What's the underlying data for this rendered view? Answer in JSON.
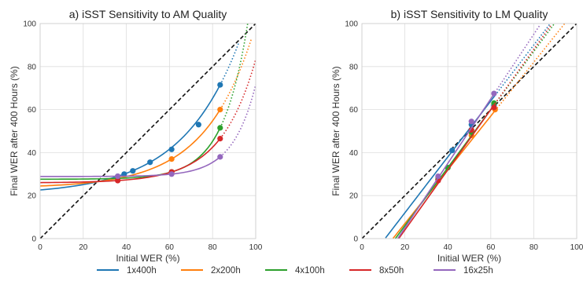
{
  "chart_data": [
    {
      "type": "line",
      "title": "a) iSST Sensitivity to AM Quality",
      "xlabel": "Initial WER (%)",
      "ylabel": "Final WER after 400 Hours (%)",
      "xlim": [
        0,
        100
      ],
      "ylim": [
        0,
        100
      ],
      "xticks": [
        0,
        20,
        40,
        60,
        80,
        100
      ],
      "yticks": [
        0,
        20,
        40,
        60,
        80,
        100
      ],
      "grid": true,
      "reference_line": "y = x (dashed)",
      "series": [
        {
          "name": "1x400h",
          "color": "#1f77b4",
          "points": [
            [
              36,
              29
            ],
            [
              39,
              30
            ],
            [
              43,
              31.5
            ],
            [
              51,
              35.5
            ],
            [
              61,
              41.5
            ],
            [
              73.5,
              53
            ],
            [
              83.5,
              71.5
            ]
          ],
          "fit_solid_to": 83.5,
          "fit_dotted_to": 92
        },
        {
          "name": "2x200h",
          "color": "#ff7f0e",
          "points": [
            [
              36,
              28
            ],
            [
              61,
              37
            ],
            [
              83.5,
              60
            ]
          ],
          "fit_solid_to": 83.5,
          "fit_dotted_to": 98
        },
        {
          "name": "4x100h",
          "color": "#2ca02c",
          "points": [
            [
              36,
              28
            ],
            [
              61,
              31
            ],
            [
              83.5,
              51.5
            ]
          ],
          "fit_solid_to": 83.5,
          "fit_dotted_to": 100
        },
        {
          "name": "8x50h",
          "color": "#d62728",
          "points": [
            [
              36,
              27
            ],
            [
              61,
              31
            ],
            [
              83.5,
              46.5
            ]
          ],
          "fit_solid_to": 83.5,
          "fit_dotted_to": 100
        },
        {
          "name": "16x25h",
          "color": "#9467bd",
          "points": [
            [
              36,
              29
            ],
            [
              61,
              30
            ],
            [
              83.5,
              38
            ]
          ],
          "fit_solid_to": 83.5,
          "fit_dotted_to": 100
        }
      ]
    },
    {
      "type": "line",
      "title": "b) iSST Sensitivity to LM Quality",
      "xlabel": "Initial WER (%)",
      "ylabel": "Final WER after 400 Hours (%)",
      "xlim": [
        0,
        100
      ],
      "ylim": [
        0,
        100
      ],
      "xticks": [
        0,
        20,
        40,
        60,
        80,
        100
      ],
      "yticks": [
        0,
        20,
        40,
        60,
        80,
        100
      ],
      "grid": true,
      "reference_line": "y = x (dashed)",
      "series": [
        {
          "name": "1x400h",
          "color": "#1f77b4",
          "points": [
            [
              35.5,
              28.5
            ],
            [
              42,
              41
            ],
            [
              51,
              53
            ],
            [
              61.5,
              62
            ]
          ],
          "line": {
            "slope": 1.3,
            "intercept": -14,
            "solid": [
              11,
              62
            ],
            "dotted_to": 94
          }
        },
        {
          "name": "2x200h",
          "color": "#ff7f0e",
          "points": [
            [
              35.5,
              27.5
            ],
            [
              40,
              33
            ],
            [
              51,
              48
            ],
            [
              62,
              60
            ]
          ],
          "line": {
            "slope": 1.25,
            "intercept": -18,
            "solid": [
              14.5,
              62
            ],
            "dotted_to": 95
          }
        },
        {
          "name": "4x100h",
          "color": "#2ca02c",
          "points": [
            [
              35.5,
              27.5
            ],
            [
              40,
              33
            ],
            [
              51,
              49.5
            ],
            [
              61.5,
              63
            ]
          ],
          "line": {
            "slope": 1.35,
            "intercept": -21,
            "solid": [
              15.5,
              62
            ],
            "dotted_to": 90
          }
        },
        {
          "name": "8x50h",
          "color": "#d62728",
          "points": [
            [
              35.5,
              27
            ],
            [
              51,
              50.5
            ],
            [
              61.5,
              61
            ]
          ],
          "line": {
            "slope": 1.4,
            "intercept": -24,
            "solid": [
              17,
              62
            ],
            "dotted_to": 88
          }
        },
        {
          "name": "16x25h",
          "color": "#9467bd",
          "points": [
            [
              35.5,
              29
            ],
            [
              51,
              54.5
            ],
            [
              61.5,
              67.5
            ]
          ],
          "line": {
            "slope": 1.5,
            "intercept": -25,
            "solid": [
              16.5,
              62
            ],
            "dotted_to": 83
          }
        }
      ]
    }
  ],
  "legend": {
    "placement": "bottom",
    "entries": [
      {
        "label": "1x400h",
        "color": "#1f77b4"
      },
      {
        "label": "2x200h",
        "color": "#ff7f0e"
      },
      {
        "label": "4x100h",
        "color": "#2ca02c"
      },
      {
        "label": "8x50h",
        "color": "#d62728"
      },
      {
        "label": "16x25h",
        "color": "#9467bd"
      }
    ]
  }
}
